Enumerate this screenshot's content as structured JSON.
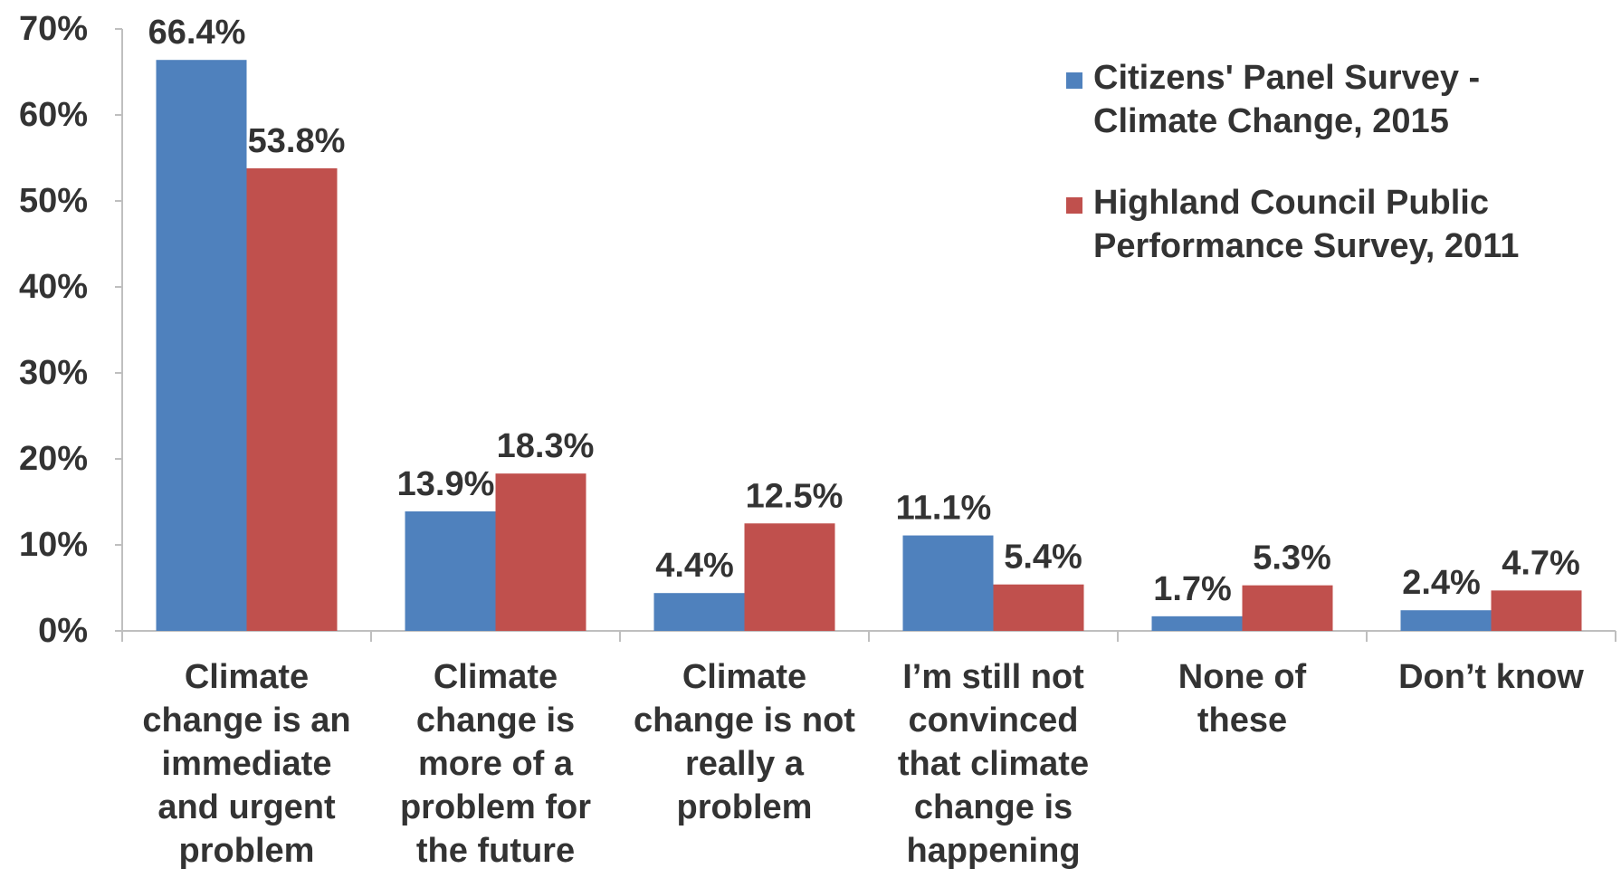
{
  "chart_data": {
    "type": "bar",
    "categories": [
      [
        "Climate",
        "change is an",
        "immediate",
        "and urgent",
        "problem"
      ],
      [
        "Climate",
        "change is",
        "more of a",
        "problem for",
        "the future"
      ],
      [
        "Climate",
        "change is not",
        "really a",
        "problem"
      ],
      [
        "I’m still not",
        "convinced",
        "that climate",
        "change is",
        "happening"
      ],
      [
        "None of",
        "these"
      ],
      [
        "Don’t know"
      ]
    ],
    "series": [
      {
        "name": [
          "Citizens' Panel Survey -",
          "Climate Change, 2015"
        ],
        "color": "#4f81bd",
        "values": [
          66.4,
          13.9,
          4.4,
          11.1,
          1.7,
          2.4
        ],
        "labels": [
          "66.4%",
          "13.9%",
          "4.4%",
          "11.1%",
          "1.7%",
          "2.4%"
        ]
      },
      {
        "name": [
          "Highland Council Public",
          "Performance Survey, 2011"
        ],
        "color": "#c0504d",
        "values": [
          53.8,
          18.3,
          12.5,
          5.4,
          5.3,
          4.7
        ],
        "labels": [
          "53.8%",
          "18.3%",
          "12.5%",
          "5.4%",
          "5.3%",
          "4.7%"
        ]
      }
    ],
    "yticks": [
      "0%",
      "10%",
      "20%",
      "30%",
      "40%",
      "50%",
      "60%",
      "70%"
    ],
    "ylim": [
      0,
      70
    ],
    "grid": false,
    "legend_position": "top-right"
  }
}
